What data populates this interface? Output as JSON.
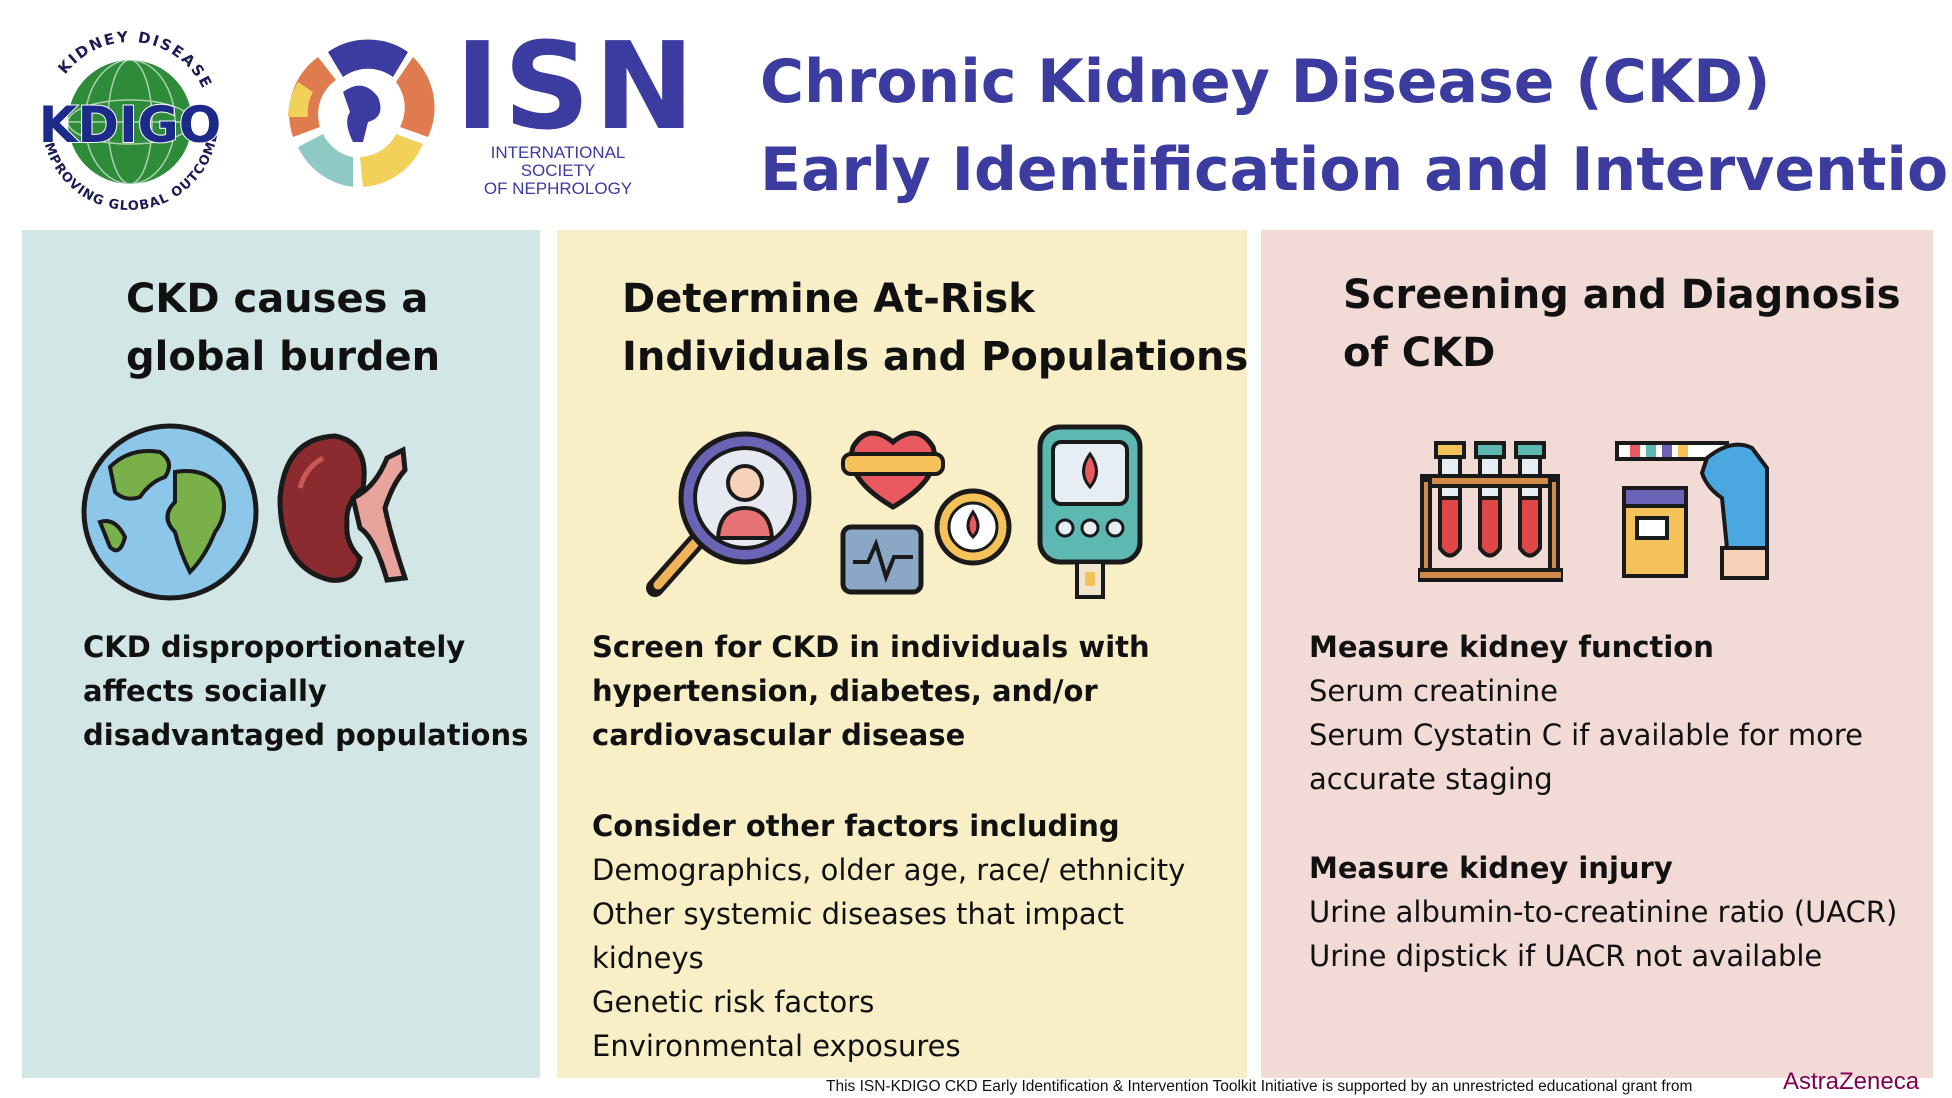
{
  "logos": {
    "kdigo_top": "KIDNEY DISEASE",
    "kdigo_bottom": "IMPROVING GLOBAL OUTCOMES",
    "kdigo_name": "KDIGO",
    "isn_name": "ISN",
    "isn_sub_line1": "INTERNATIONAL SOCIETY",
    "isn_sub_line2": "OF NEPHROLOGY"
  },
  "title": {
    "line1": "Chronic Kidney Disease (CKD)",
    "line2": "Early Identification and Intervention"
  },
  "panels": {
    "burden": {
      "heading_line1": "CKD causes a",
      "heading_line2": "global burden",
      "text_line1": "CKD disproportionately",
      "text_line2": "affects socially",
      "text_line3": "disadvantaged populations"
    },
    "risk": {
      "heading_line1": "Determine At-Risk",
      "heading_line2": "Individuals and Populations",
      "screen_line1": "Screen for CKD in individuals with",
      "screen_line2": "hypertension, diabetes, and/or",
      "screen_line3": "cardiovascular disease",
      "consider_heading": "Consider other factors including",
      "factor1": "Demographics, older age, race/ ethnicity",
      "factor2_line1": "Other systemic diseases that impact",
      "factor2_line2": "kidneys",
      "factor3": "Genetic risk factors",
      "factor4": "Environmental exposures"
    },
    "screening": {
      "heading_line1": "Screening and Diagnosis",
      "heading_line2": "of CKD",
      "function_heading": "Measure kidney function",
      "function1": "Serum creatinine",
      "function2_line1": "Serum Cystatin C if available for more",
      "function2_line2": "accurate staging",
      "injury_heading": "Measure kidney injury",
      "injury1": "Urine albumin-to-creatinine ratio (UACR)",
      "injury2": "Urine dipstick if UACR not available"
    }
  },
  "footer": {
    "text": "This ISN-KDIGO CKD Early Identification & Intervention Toolkit Initiative is supported by an unrestricted educational grant from",
    "sponsor": "AstraZeneca"
  },
  "icons": [
    "globe-icon",
    "kidney-icon",
    "magnifier-person-icon",
    "heart-monitor-icon",
    "glucometer-icon",
    "test-tubes-icon",
    "urine-dipstick-icon"
  ]
}
